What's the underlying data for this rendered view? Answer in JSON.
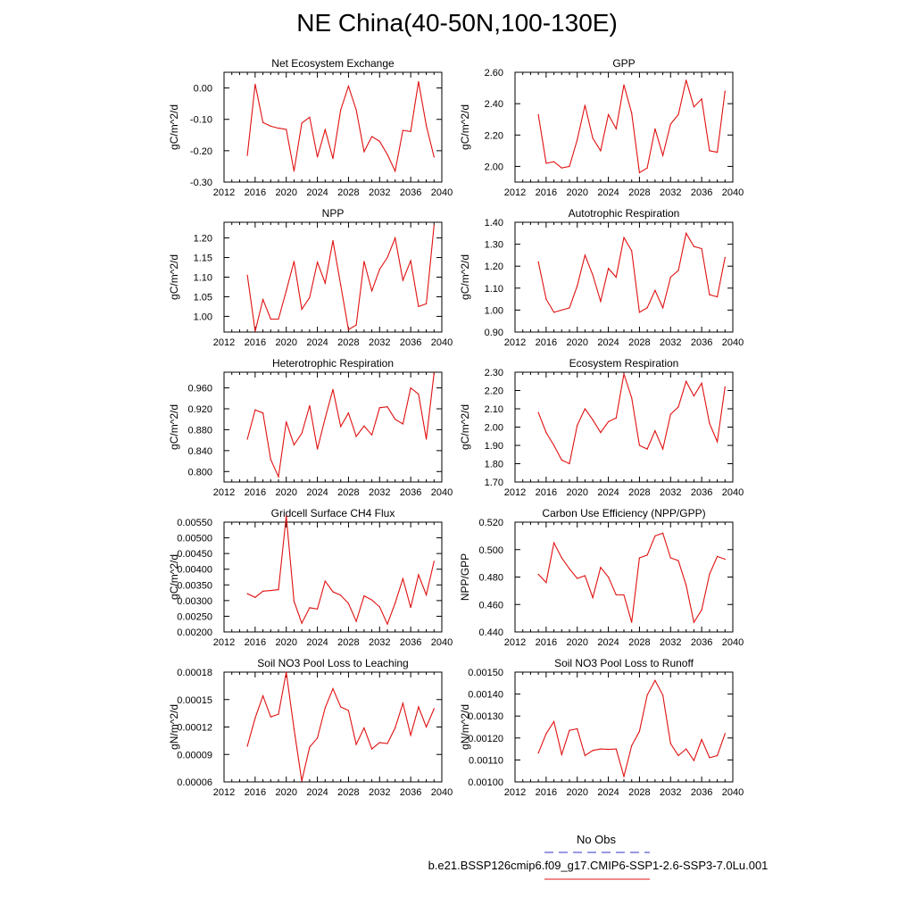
{
  "page": {
    "title": "NE China(40-50N,100-130E)",
    "legend": {
      "obs_label": "No Obs",
      "obs_color": "#3333cc",
      "case_label": "b.e21.BSSP126cmip6.f09_g17.CMIP6-SSP1-2.6-SSP3-7.0Lu.001",
      "case_color": "#e01010"
    }
  },
  "chart_data": [
    {
      "type": "line",
      "title": "Net Ecosystem Exchange",
      "ylabel": "gC/m^2/d",
      "xlim": [
        2012,
        2040
      ],
      "xticks": [
        "2012",
        "2016",
        "2020",
        "2024",
        "2028",
        "2032",
        "2036",
        "2040"
      ],
      "ylim": [
        -0.3,
        0.05
      ],
      "yticks": [
        "0.00",
        "-0.10",
        "-0.20",
        "-0.30"
      ],
      "x": [
        2015,
        2016,
        2017,
        2018,
        2019,
        2020,
        2021,
        2022,
        2023,
        2024,
        2025,
        2026,
        2027,
        2028,
        2029,
        2030,
        2031,
        2032,
        2033,
        2034,
        2035,
        2036,
        2037,
        2038,
        2039
      ],
      "series": [
        {
          "values": [
            -0.215,
            0.012,
            -0.11,
            -0.122,
            -0.128,
            -0.132,
            -0.265,
            -0.112,
            -0.093,
            -0.22,
            -0.133,
            -0.225,
            -0.07,
            0.006,
            -0.07,
            -0.203,
            -0.155,
            -0.17,
            -0.212,
            -0.265,
            -0.135,
            -0.139,
            0.02,
            -0.12,
            -0.22
          ]
        }
      ]
    },
    {
      "type": "line",
      "title": "GPP",
      "ylabel": "gC/m^2/d",
      "xlim": [
        2012,
        2040
      ],
      "xticks": [
        "2012",
        "2016",
        "2020",
        "2024",
        "2028",
        "2032",
        "2036",
        "2040"
      ],
      "ylim": [
        1.9,
        2.6
      ],
      "yticks": [
        "2.60",
        "2.40",
        "2.20",
        "2.00"
      ],
      "x": [
        2015,
        2016,
        2017,
        2018,
        2019,
        2020,
        2021,
        2022,
        2023,
        2024,
        2025,
        2026,
        2027,
        2028,
        2029,
        2030,
        2031,
        2032,
        2033,
        2034,
        2035,
        2036,
        2037,
        2038,
        2039
      ],
      "series": [
        {
          "values": [
            2.33,
            2.02,
            2.03,
            1.99,
            2.0,
            2.17,
            2.39,
            2.18,
            2.1,
            2.33,
            2.24,
            2.52,
            2.34,
            1.96,
            1.99,
            2.24,
            2.07,
            2.27,
            2.33,
            2.55,
            2.38,
            2.43,
            2.1,
            2.09,
            2.48
          ]
        }
      ]
    },
    {
      "type": "line",
      "title": "NPP",
      "ylabel": "gC/m^2/d",
      "xlim": [
        2012,
        2040
      ],
      "xticks": [
        "2012",
        "2016",
        "2020",
        "2024",
        "2028",
        "2032",
        "2036",
        "2040"
      ],
      "ylim": [
        0.96,
        1.24
      ],
      "yticks": [
        "1.20",
        "1.15",
        "1.10",
        "1.05",
        "1.00"
      ],
      "x": [
        2015,
        2016,
        2017,
        2018,
        2019,
        2020,
        2021,
        2022,
        2023,
        2024,
        2025,
        2026,
        2027,
        2028,
        2029,
        2030,
        2031,
        2032,
        2033,
        2034,
        2035,
        2036,
        2037,
        2038,
        2039
      ],
      "series": [
        {
          "values": [
            1.105,
            0.962,
            1.043,
            0.993,
            0.993,
            1.065,
            1.14,
            1.018,
            1.048,
            1.138,
            1.085,
            1.193,
            1.08,
            0.966,
            0.978,
            1.14,
            1.065,
            1.12,
            1.15,
            1.2,
            1.092,
            1.142,
            1.025,
            1.032,
            1.232
          ]
        }
      ]
    },
    {
      "type": "line",
      "title": "Autotrophic Respiration",
      "ylabel": "gC/m^2/d",
      "xlim": [
        2012,
        2040
      ],
      "xticks": [
        "2012",
        "2016",
        "2020",
        "2024",
        "2028",
        "2032",
        "2036",
        "2040"
      ],
      "ylim": [
        0.9,
        1.4
      ],
      "yticks": [
        "1.40",
        "1.30",
        "1.20",
        "1.10",
        "1.00",
        "0.90"
      ],
      "x": [
        2015,
        2016,
        2017,
        2018,
        2019,
        2020,
        2021,
        2022,
        2023,
        2024,
        2025,
        2026,
        2027,
        2028,
        2029,
        2030,
        2031,
        2032,
        2033,
        2034,
        2035,
        2036,
        2037,
        2038,
        2039
      ],
      "series": [
        {
          "values": [
            1.22,
            1.05,
            0.99,
            1.0,
            1.01,
            1.11,
            1.25,
            1.16,
            1.04,
            1.19,
            1.15,
            1.33,
            1.27,
            0.99,
            1.01,
            1.09,
            1.01,
            1.15,
            1.18,
            1.35,
            1.29,
            1.28,
            1.07,
            1.06,
            1.24
          ]
        }
      ]
    },
    {
      "type": "line",
      "title": "Heterotrophic Respiration",
      "ylabel": "gC/m^2/d",
      "xlim": [
        2012,
        2040
      ],
      "xticks": [
        "2012",
        "2016",
        "2020",
        "2024",
        "2028",
        "2032",
        "2036",
        "2040"
      ],
      "ylim": [
        0.78,
        0.99
      ],
      "yticks": [
        "0.960",
        "0.920",
        "0.880",
        "0.840",
        "0.800"
      ],
      "x": [
        2015,
        2016,
        2017,
        2018,
        2019,
        2020,
        2021,
        2022,
        2023,
        2024,
        2025,
        2026,
        2027,
        2028,
        2029,
        2030,
        2031,
        2032,
        2033,
        2034,
        2035,
        2036,
        2037,
        2038,
        2039
      ],
      "series": [
        {
          "values": [
            0.862,
            0.918,
            0.912,
            0.823,
            0.79,
            0.895,
            0.851,
            0.873,
            0.926,
            0.843,
            0.902,
            0.957,
            0.886,
            0.912,
            0.867,
            0.887,
            0.87,
            0.922,
            0.924,
            0.9,
            0.891,
            0.96,
            0.948,
            0.862,
            0.988
          ]
        }
      ]
    },
    {
      "type": "line",
      "title": "Ecosystem Respiration",
      "ylabel": "gC/m^2/d",
      "xlim": [
        2012,
        2040
      ],
      "xticks": [
        "2012",
        "2016",
        "2020",
        "2024",
        "2028",
        "2032",
        "2036",
        "2040"
      ],
      "ylim": [
        1.7,
        2.3
      ],
      "yticks": [
        "2.30",
        "2.20",
        "2.10",
        "2.00",
        "1.90",
        "1.80",
        "1.70"
      ],
      "x": [
        2015,
        2016,
        2017,
        2018,
        2019,
        2020,
        2021,
        2022,
        2023,
        2024,
        2025,
        2026,
        2027,
        2028,
        2029,
        2030,
        2031,
        2032,
        2033,
        2034,
        2035,
        2036,
        2037,
        2038,
        2039
      ],
      "series": [
        {
          "values": [
            2.08,
            1.97,
            1.9,
            1.82,
            1.8,
            2.01,
            2.1,
            2.04,
            1.97,
            2.03,
            2.05,
            2.29,
            2.16,
            1.9,
            1.88,
            1.98,
            1.88,
            2.07,
            2.11,
            2.25,
            2.17,
            2.24,
            2.02,
            1.92,
            2.22
          ]
        }
      ]
    },
    {
      "type": "line",
      "title": "Gridcell Surface CH4 Flux",
      "ylabel": "gC/m^2/d",
      "xlim": [
        2012,
        2040
      ],
      "xticks": [
        "2012",
        "2016",
        "2020",
        "2024",
        "2028",
        "2032",
        "2036",
        "2040"
      ],
      "ylim": [
        0.002,
        0.0055
      ],
      "yticks": [
        "0.00550",
        "0.00500",
        "0.00450",
        "0.00400",
        "0.00350",
        "0.00300",
        "0.00250",
        "0.00200"
      ],
      "x": [
        2015,
        2016,
        2017,
        2018,
        2019,
        2020,
        2021,
        2022,
        2023,
        2024,
        2025,
        2026,
        2027,
        2028,
        2029,
        2030,
        2031,
        2032,
        2033,
        2034,
        2035,
        2036,
        2037,
        2038,
        2039
      ],
      "series": [
        {
          "values": [
            0.00322,
            0.0031,
            0.0033,
            0.00332,
            0.00335,
            0.0057,
            0.00298,
            0.00228,
            0.00277,
            0.00273,
            0.00362,
            0.00328,
            0.00317,
            0.00291,
            0.00234,
            0.00315,
            0.00302,
            0.0028,
            0.00225,
            0.00292,
            0.0037,
            0.00278,
            0.00382,
            0.00318,
            0.00425
          ]
        }
      ]
    },
    {
      "type": "line",
      "title": "Carbon Use Efficiency (NPP/GPP)",
      "ylabel": "NPP/GPP",
      "xlim": [
        2012,
        2040
      ],
      "xticks": [
        "2012",
        "2016",
        "2020",
        "2024",
        "2028",
        "2032",
        "2036",
        "2040"
      ],
      "ylim": [
        0.44,
        0.52
      ],
      "yticks": [
        "0.520",
        "0.500",
        "0.480",
        "0.460",
        "0.440"
      ],
      "x": [
        2015,
        2016,
        2017,
        2018,
        2019,
        2020,
        2021,
        2022,
        2023,
        2024,
        2025,
        2026,
        2027,
        2028,
        2029,
        2030,
        2031,
        2032,
        2033,
        2034,
        2035,
        2036,
        2037,
        2038,
        2039
      ],
      "series": [
        {
          "values": [
            0.482,
            0.476,
            0.505,
            0.494,
            0.486,
            0.479,
            0.481,
            0.465,
            0.487,
            0.48,
            0.467,
            0.467,
            0.447,
            0.494,
            0.496,
            0.51,
            0.512,
            0.494,
            0.492,
            0.474,
            0.447,
            0.456,
            0.482,
            0.495,
            0.493
          ]
        }
      ]
    },
    {
      "type": "line",
      "title": "Soil NO3 Pool Loss to Leaching",
      "ylabel": "gN/m^2/d",
      "xlim": [
        2012,
        2040
      ],
      "xticks": [
        "2012",
        "2016",
        "2020",
        "2024",
        "2028",
        "2032",
        "2036",
        "2040"
      ],
      "ylim": [
        6e-05,
        0.00018
      ],
      "yticks": [
        "0.00018",
        "0.00015",
        "0.00012",
        "0.00009",
        "0.00006"
      ],
      "x": [
        2015,
        2016,
        2017,
        2018,
        2019,
        2020,
        2021,
        2022,
        2023,
        2024,
        2025,
        2026,
        2027,
        2028,
        2029,
        2030,
        2031,
        2032,
        2033,
        2034,
        2035,
        2036,
        2037,
        2038,
        2039
      ],
      "series": [
        {
          "values": [
            9.9e-05,
            0.00013,
            0.000154,
            0.000131,
            0.000134,
            0.00018,
            0.000118,
            6.1e-05,
            9.8e-05,
            0.000108,
            0.000141,
            0.000162,
            0.000142,
            0.000138,
            0.000101,
            0.000119,
            9.6e-05,
            0.000103,
            0.000102,
            0.000119,
            0.000146,
            0.000111,
            0.000142,
            0.00012,
            0.00014
          ]
        }
      ]
    },
    {
      "type": "line",
      "title": "Soil NO3 Pool Loss to Runoff",
      "ylabel": "gN/m^2/d",
      "xlim": [
        2012,
        2040
      ],
      "xticks": [
        "2012",
        "2016",
        "2020",
        "2024",
        "2028",
        "2032",
        "2036",
        "2040"
      ],
      "ylim": [
        0.001,
        0.0015
      ],
      "yticks": [
        "0.00150",
        "0.00140",
        "0.00130",
        "0.00120",
        "0.00110",
        "0.00100"
      ],
      "x": [
        2015,
        2016,
        2017,
        2018,
        2019,
        2020,
        2021,
        2022,
        2023,
        2024,
        2025,
        2026,
        2027,
        2028,
        2029,
        2030,
        2031,
        2032,
        2033,
        2034,
        2035,
        2036,
        2037,
        2038,
        2039
      ],
      "series": [
        {
          "values": [
            0.001131,
            0.00122,
            0.001275,
            0.001125,
            0.001235,
            0.001242,
            0.00112,
            0.001143,
            0.00115,
            0.001148,
            0.00115,
            0.001025,
            0.001165,
            0.00123,
            0.001395,
            0.001462,
            0.001395,
            0.001175,
            0.00112,
            0.00115,
            0.001097,
            0.001193,
            0.00111,
            0.00112,
            0.00122
          ]
        }
      ]
    }
  ]
}
